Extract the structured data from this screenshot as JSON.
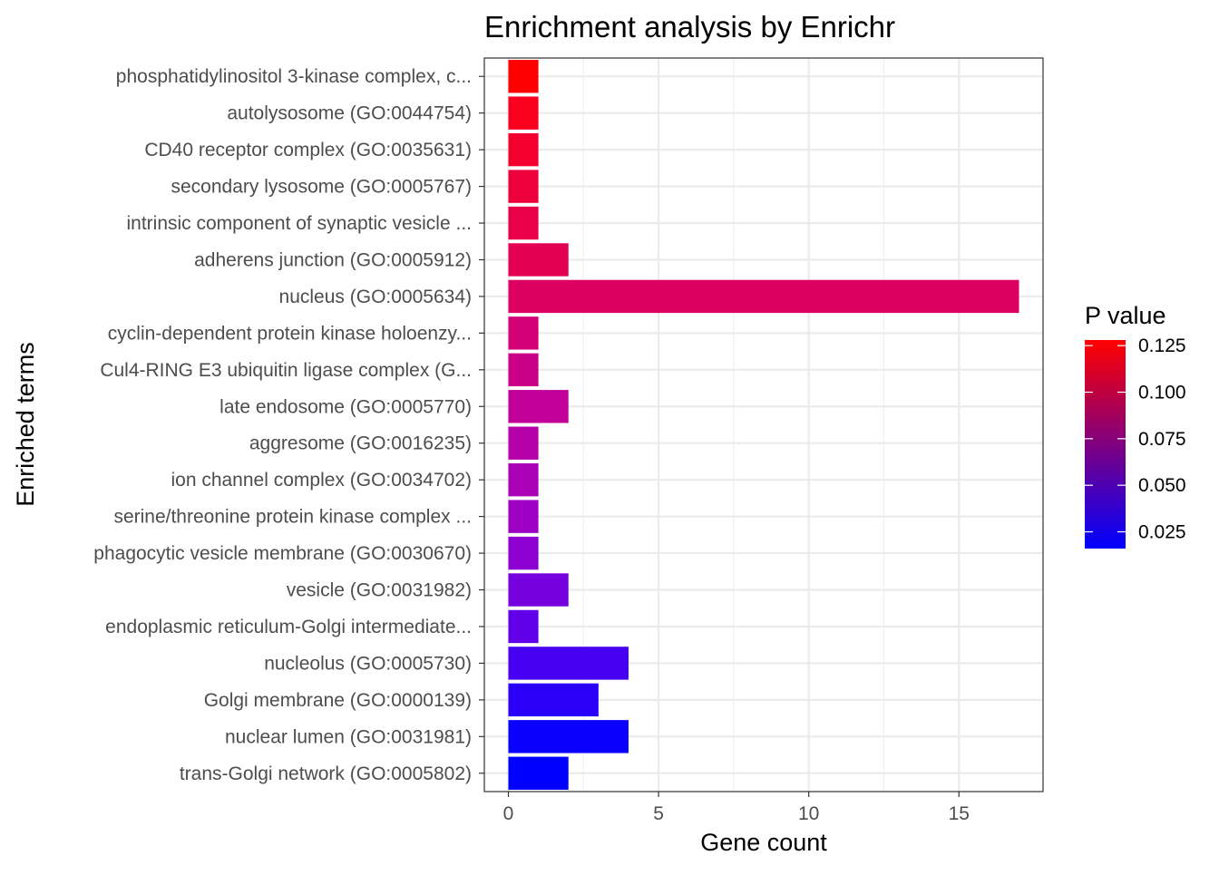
{
  "chart_data": {
    "type": "bar",
    "orientation": "horizontal",
    "title": "Enrichment analysis by Enrichr",
    "xlabel": "Gene count",
    "ylabel": "Enriched terms",
    "xlim": [
      -0.8,
      17.8
    ],
    "xticks": [
      0,
      5,
      10,
      15
    ],
    "grid": true,
    "categories": [
      "phosphatidylinositol 3-kinase complex, c...",
      "autolysosome (GO:0044754)",
      "CD40 receptor complex (GO:0035631)",
      "secondary lysosome (GO:0005767)",
      "intrinsic component of synaptic vesicle ...",
      "adherens junction (GO:0005912)",
      "nucleus (GO:0005634)",
      "cyclin-dependent protein kinase holoenzy...",
      "Cul4-RING E3 ubiquitin ligase complex (G...",
      "late endosome (GO:0005770)",
      "aggresome (GO:0016235)",
      "ion channel complex (GO:0034702)",
      "serine/threonine protein kinase complex ...",
      "phagocytic vesicle membrane (GO:0030670)",
      "vesicle (GO:0031982)",
      "endoplasmic reticulum-Golgi intermediate...",
      "nucleolus (GO:0005730)",
      "Golgi membrane (GO:0000139)",
      "nuclear lumen (GO:0031981)",
      "trans-Golgi network (GO:0005802)"
    ],
    "values": [
      1,
      1,
      1,
      1,
      1,
      2,
      17,
      1,
      1,
      2,
      1,
      1,
      1,
      1,
      2,
      1,
      4,
      3,
      4,
      2
    ],
    "colors": [
      "#FF0000",
      "#F9001F",
      "#F4002F",
      "#EE003D",
      "#E80049",
      "#E30054",
      "#DD0063",
      "#D40078",
      "#CB0089",
      "#C10099",
      "#B600A8",
      "#AA00B6",
      "#9D00C3",
      "#8C00D1",
      "#7700DE",
      "#6100E8",
      "#4700F2",
      "#2A00F8",
      "#0A00FE",
      "#0000FF"
    ],
    "legend": {
      "title": "P value",
      "position": "right",
      "gradient": [
        "#0000FF",
        "#FF0000"
      ],
      "tick_labels": [
        "0.025",
        "0.050",
        "0.075",
        "0.100",
        "0.125"
      ],
      "tick_values": [
        0.025,
        0.05,
        0.075,
        0.1,
        0.125
      ],
      "range": [
        0.016,
        0.128
      ]
    }
  }
}
